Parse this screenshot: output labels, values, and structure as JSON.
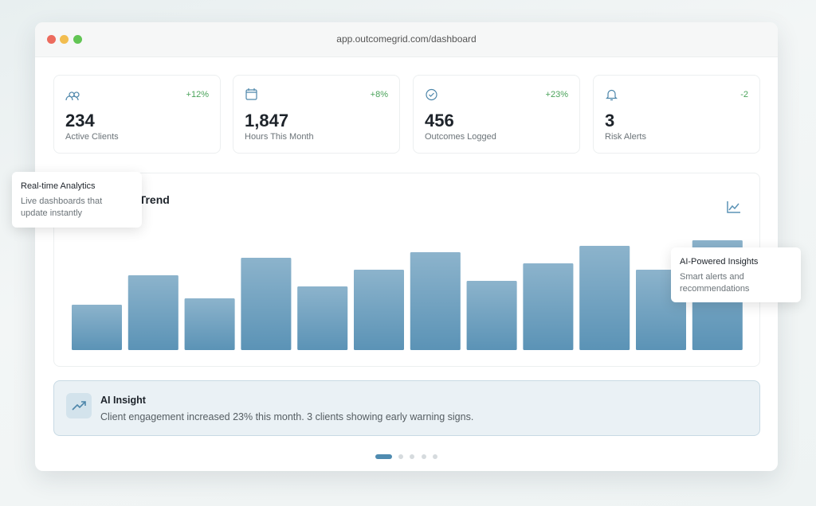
{
  "window": {
    "url": "app.outcomegrid.com/dashboard"
  },
  "stats": [
    {
      "change": "+12%",
      "value": "234",
      "label": "Active Clients"
    },
    {
      "change": "+8%",
      "value": "1,847",
      "label": "Hours This Month"
    },
    {
      "change": "+23%",
      "value": "456",
      "label": "Outcomes Logged"
    },
    {
      "change": "-2",
      "value": "3",
      "label": "Risk Alerts"
    }
  ],
  "chart_data": {
    "type": "bar",
    "title": "s Trend",
    "values": [
      57,
      94,
      65,
      116,
      80,
      101,
      123,
      87,
      109,
      131,
      101,
      138
    ],
    "color": "#5b93b6"
  },
  "tooltips": [
    {
      "title": "Real-time Analytics",
      "text": "Live dashboards that update instantly"
    },
    {
      "title": "AI-Powered Insights",
      "text": "Smart alerts and recommendations"
    }
  ],
  "insight": {
    "title": "AI Insight",
    "text": "Client engagement increased 23% this month. 3 clients showing early warning signs."
  }
}
